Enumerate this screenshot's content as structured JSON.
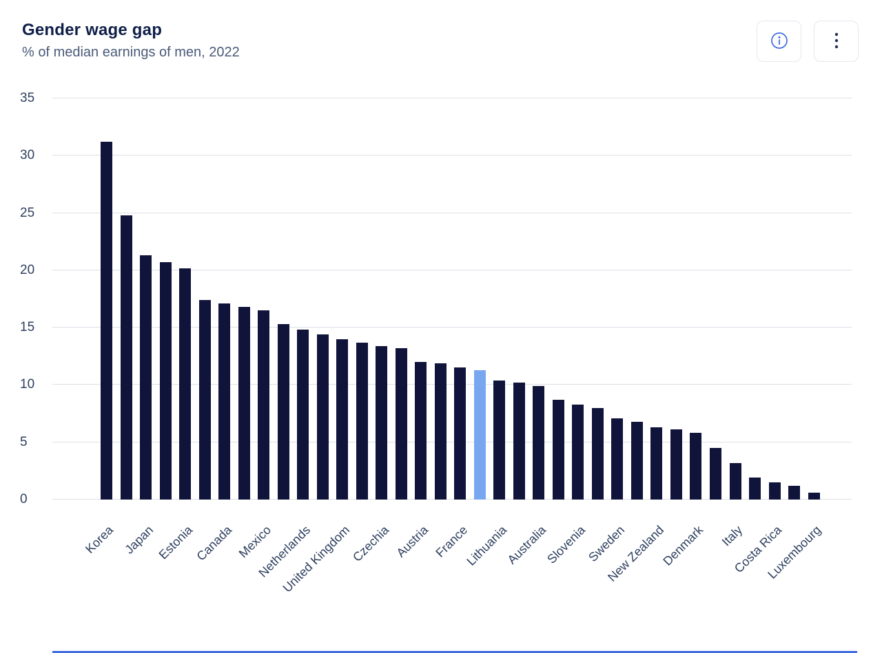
{
  "header": {
    "title": "Gender wage gap",
    "subtitle": "% of median earnings of men, 2022"
  },
  "toolbar": {
    "info_icon": "info-icon",
    "menu_icon": "kebab-menu-icon"
  },
  "colors": {
    "bar": "#10143a",
    "bar_highlight": "#78a7f0",
    "title": "#0f1f49",
    "subtitle": "#4a5a79",
    "axis_text": "#2e3f5f",
    "gridline": "#dcdfe4",
    "accent": "#3f6ae0"
  },
  "chart_data": {
    "type": "bar",
    "title": "Gender wage gap",
    "subtitle": "% of median earnings of men, 2022",
    "xlabel": "",
    "ylabel": "% of median earnings of men",
    "ylim": [
      0,
      35
    ],
    "yticks": [
      0,
      5,
      10,
      15,
      20,
      25,
      30,
      35
    ],
    "grid": true,
    "legend": false,
    "note": "Unlabeled bars appear between labeled ones; their country names are not visible in the image. The light-blue bar is a highlighted bar.",
    "bars": [
      {
        "label": "Korea",
        "value": 31.2
      },
      {
        "label": "",
        "value": 24.8
      },
      {
        "label": "Japan",
        "value": 21.3
      },
      {
        "label": "",
        "value": 20.7
      },
      {
        "label": "Estonia",
        "value": 20.2
      },
      {
        "label": "",
        "value": 17.4
      },
      {
        "label": "Canada",
        "value": 17.1
      },
      {
        "label": "",
        "value": 16.8
      },
      {
        "label": "Mexico",
        "value": 16.5
      },
      {
        "label": "",
        "value": 15.3
      },
      {
        "label": "Netherlands",
        "value": 14.8
      },
      {
        "label": "",
        "value": 14.4
      },
      {
        "label": "United Kingdom",
        "value": 14.0
      },
      {
        "label": "",
        "value": 13.7
      },
      {
        "label": "Czechia",
        "value": 13.4
      },
      {
        "label": "",
        "value": 13.2
      },
      {
        "label": "Austria",
        "value": 12.0
      },
      {
        "label": "",
        "value": 11.9
      },
      {
        "label": "France",
        "value": 11.5
      },
      {
        "label": "",
        "value": 11.3,
        "highlight": true
      },
      {
        "label": "Lithuania",
        "value": 10.4
      },
      {
        "label": "",
        "value": 10.2
      },
      {
        "label": "Australia",
        "value": 9.9
      },
      {
        "label": "",
        "value": 8.7
      },
      {
        "label": "Slovenia",
        "value": 8.3
      },
      {
        "label": "",
        "value": 8.0
      },
      {
        "label": "Sweden",
        "value": 7.1
      },
      {
        "label": "",
        "value": 6.8
      },
      {
        "label": "New Zealand",
        "value": 6.3
      },
      {
        "label": "",
        "value": 6.1
      },
      {
        "label": "Denmark",
        "value": 5.8
      },
      {
        "label": "",
        "value": 4.5
      },
      {
        "label": "Italy",
        "value": 3.2
      },
      {
        "label": "",
        "value": 1.9
      },
      {
        "label": "Costa Rica",
        "value": 1.5
      },
      {
        "label": "",
        "value": 1.2
      },
      {
        "label": "Luxembourg",
        "value": 0.6
      }
    ]
  }
}
